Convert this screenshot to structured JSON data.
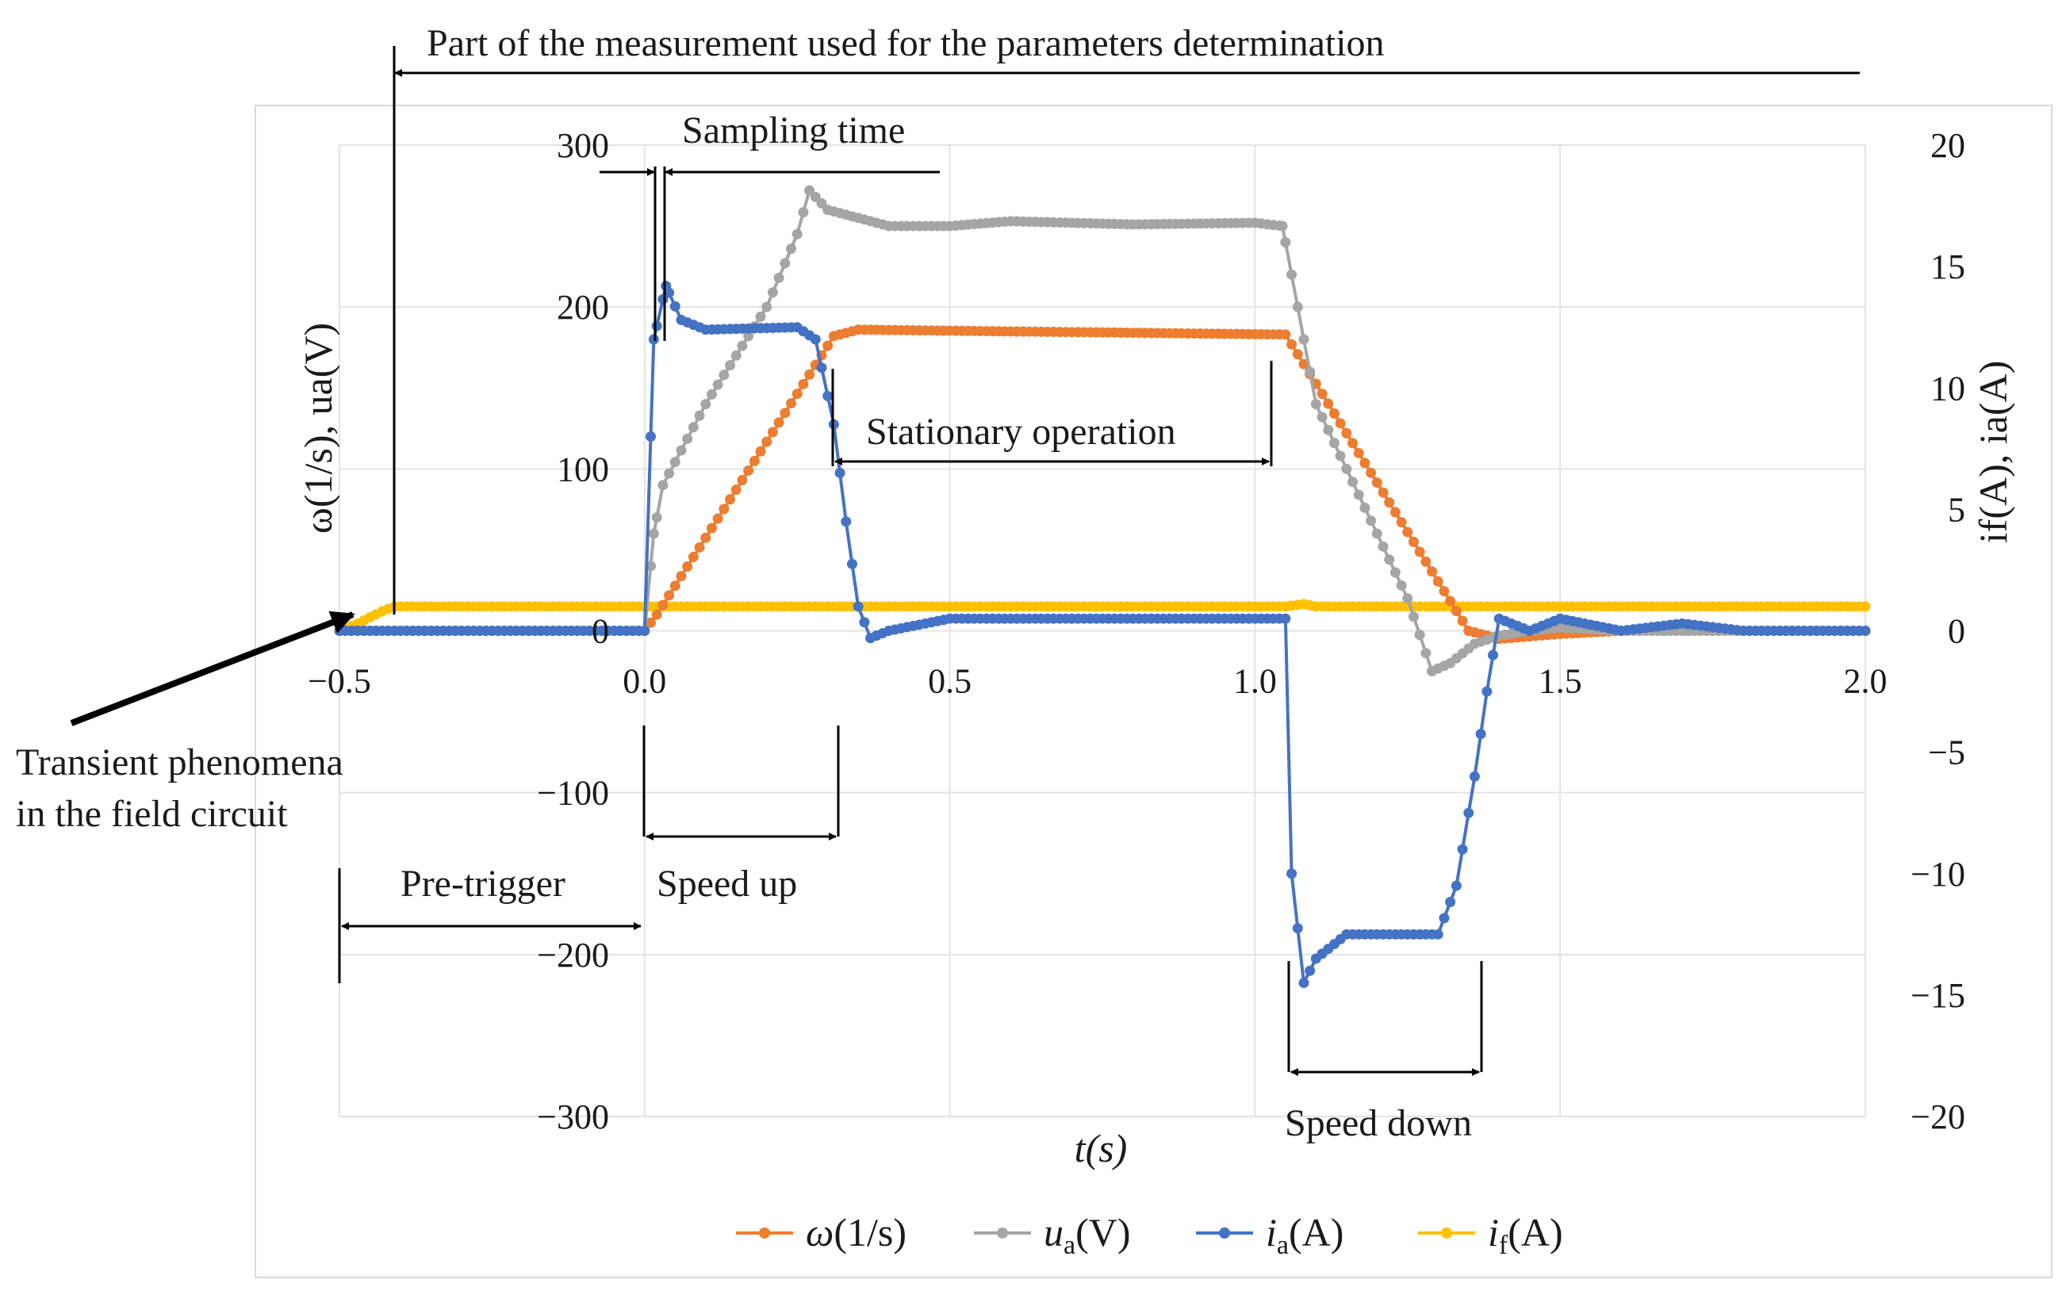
{
  "chart_data": {
    "type": "line",
    "xlabel": "t(s)",
    "ylabel_left": "ω(1/s), ua(V)",
    "ylabel_right": "if(A), ia(A)",
    "x_range": [
      -0.5,
      2.0
    ],
    "y_left_range": [
      -300,
      300
    ],
    "y_right_range": [
      -20,
      20
    ],
    "x_ticks": [
      "−0.5",
      "0.0",
      "0.5",
      "1.0",
      "1.5",
      "2.0"
    ],
    "y_left_ticks": [
      "300",
      "200",
      "100",
      "0",
      "−100",
      "−200",
      "−300"
    ],
    "y_right_ticks": [
      "20",
      "15",
      "10",
      "5",
      "0",
      "−5",
      "−10",
      "−15",
      "−20"
    ],
    "grid": true,
    "legend_position": "bottom",
    "series": [
      {
        "name": "ω(1/s)",
        "symbol": "ω",
        "unit": "(1/s)",
        "axis": "left",
        "color": "#ED7D31",
        "x": [
          -0.5,
          0.0,
          0.02,
          0.31,
          0.35,
          1.05,
          1.35,
          1.4,
          1.5,
          1.6,
          2.0
        ],
        "y": [
          0,
          0,
          10,
          182,
          186,
          183,
          0,
          -5,
          -2,
          0,
          0
        ]
      },
      {
        "name": "ua(V)",
        "symbol": "u",
        "sub": "a",
        "unit": "(V)",
        "axis": "left",
        "color": "#A5A5A5",
        "x": [
          -0.5,
          0.0,
          0.015,
          0.03,
          0.1,
          0.2,
          0.25,
          0.27,
          0.3,
          0.4,
          0.5,
          0.6,
          0.8,
          1.0,
          1.045,
          1.05,
          1.1,
          1.2,
          1.25,
          1.29,
          1.32,
          1.36,
          1.4,
          1.45,
          1.5,
          1.6,
          2.0
        ],
        "y": [
          0,
          0,
          60,
          90,
          140,
          200,
          245,
          272,
          260,
          250,
          250,
          253,
          251,
          252,
          250,
          240,
          140,
          60,
          20,
          -25,
          -20,
          -8,
          -3,
          0,
          2,
          0,
          0
        ]
      },
      {
        "name": "ia(A)",
        "symbol": "i",
        "sub": "a",
        "unit": "(A)",
        "axis": "right",
        "color": "#4472C4",
        "x": [
          -0.5,
          0.0,
          0.015,
          0.035,
          0.06,
          0.1,
          0.25,
          0.28,
          0.31,
          0.33,
          0.35,
          0.37,
          0.4,
          0.5,
          0.7,
          0.9,
          1.05,
          1.06,
          1.08,
          1.1,
          1.15,
          1.3,
          1.33,
          1.36,
          1.38,
          1.4,
          1.45,
          1.5,
          1.6,
          1.7,
          1.8,
          2.0
        ],
        "y": [
          0,
          0,
          12,
          14.2,
          12.8,
          12.4,
          12.5,
          12.0,
          8.5,
          4.5,
          1.0,
          -0.3,
          0,
          0.5,
          0.5,
          0.5,
          0.5,
          -10,
          -14.5,
          -13.5,
          -12.5,
          -12.5,
          -10.5,
          -6,
          -2.5,
          0.5,
          0,
          0.5,
          0,
          0.3,
          0,
          0
        ]
      },
      {
        "name": "if(A)",
        "symbol": "i",
        "sub": "f",
        "unit": "(A)",
        "axis": "right",
        "color": "#FFC000",
        "x": [
          -0.5,
          -0.47,
          -0.43,
          -0.41,
          0.0,
          1.05,
          1.08,
          1.1,
          2.0
        ],
        "y": [
          0,
          0.3,
          0.8,
          1.0,
          1.0,
          1.0,
          1.1,
          1.0,
          1.0
        ]
      }
    ],
    "annotations": {
      "measurement_part": "Part of the measurement used for the parameters determination",
      "sampling_time": "Sampling time",
      "stationary_operation": "Stationary operation",
      "transient_line1": "Transient phenomena",
      "transient_line2": "in the field circuit",
      "pre_trigger": "Pre-trigger",
      "speed_up": "Speed up",
      "speed_down": "Speed down"
    }
  }
}
